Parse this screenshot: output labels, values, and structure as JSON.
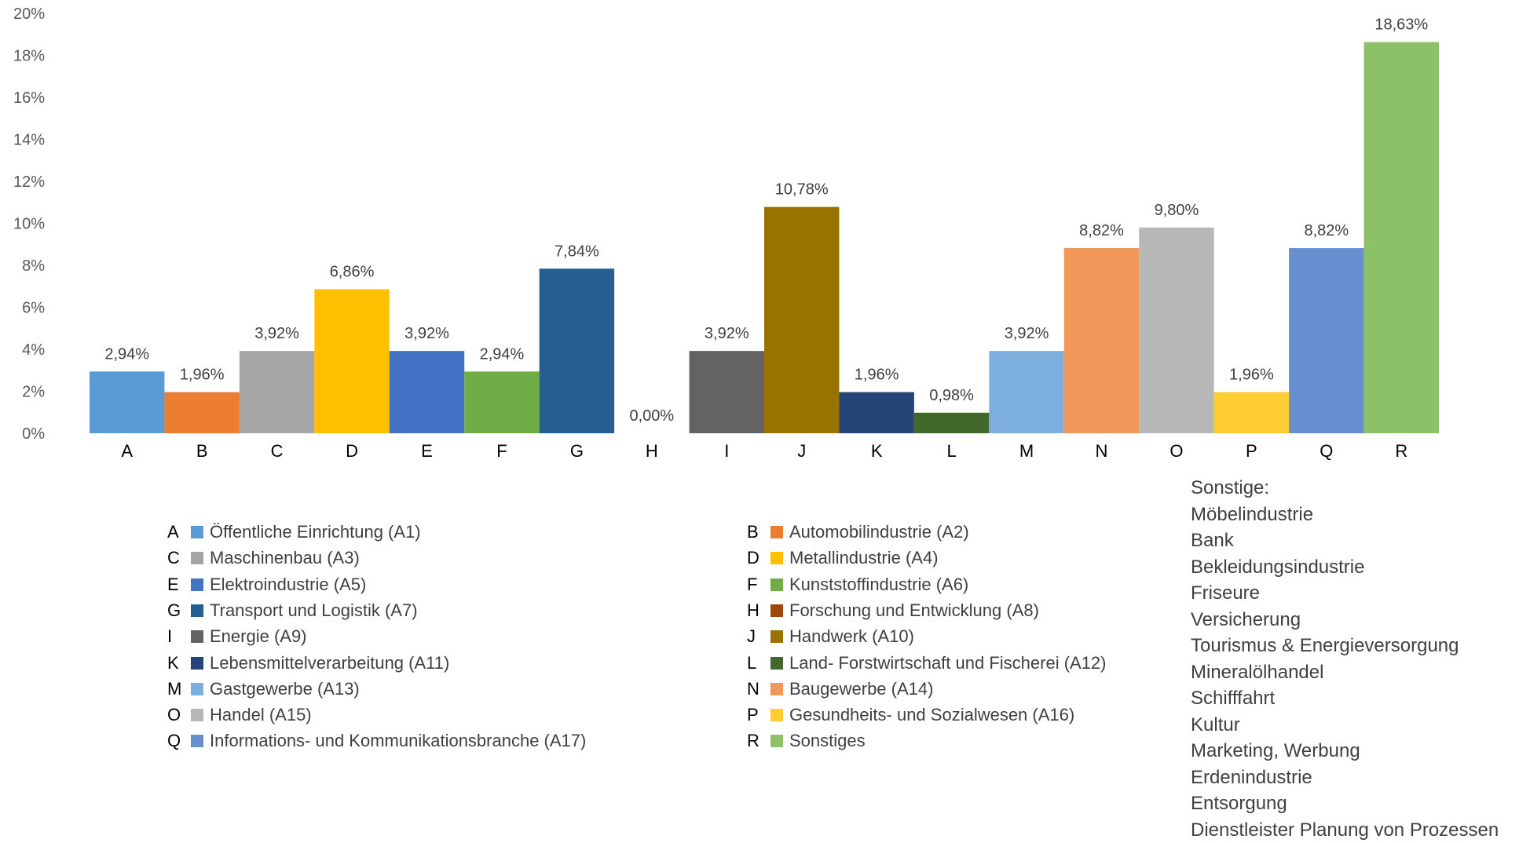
{
  "chart_data": {
    "type": "bar",
    "categories": [
      "A",
      "B",
      "C",
      "D",
      "E",
      "F",
      "G",
      "H",
      "I",
      "J",
      "K",
      "L",
      "M",
      "N",
      "O",
      "P",
      "Q",
      "R"
    ],
    "values": [
      2.94,
      1.96,
      3.92,
      6.86,
      3.92,
      2.94,
      7.84,
      0.0,
      3.92,
      10.78,
      1.96,
      0.98,
      3.92,
      8.82,
      9.8,
      1.96,
      8.82,
      18.63
    ],
    "data_labels": [
      "2,94%",
      "1,96%",
      "3,92%",
      "6,86%",
      "3,92%",
      "2,94%",
      "7,84%",
      "0,00%",
      "3,92%",
      "10,78%",
      "1,96%",
      "0,98%",
      "3,92%",
      "8,82%",
      "9,80%",
      "1,96%",
      "8,82%",
      "18,63%"
    ],
    "colors": [
      "#5B9BD5",
      "#ED7D31",
      "#A5A5A5",
      "#FFC000",
      "#4472C4",
      "#70AD47",
      "#255E91",
      "#9E480E",
      "#636363",
      "#997300",
      "#264478",
      "#43682B",
      "#7CAFDD",
      "#F1975A",
      "#B7B7B7",
      "#FFCD33",
      "#698ED0",
      "#8CC168"
    ],
    "ylim": [
      0,
      20
    ],
    "yticks": [
      "0%",
      "2%",
      "4%",
      "6%",
      "8%",
      "10%",
      "12%",
      "14%",
      "16%",
      "18%",
      "20%"
    ],
    "grid": false,
    "legend": [
      {
        "letter": "A",
        "label": "Öffentliche Einrichtung (A1)"
      },
      {
        "letter": "B",
        "label": "Automobilindustrie (A2)"
      },
      {
        "letter": "C",
        "label": "Maschinenbau (A3)"
      },
      {
        "letter": "D",
        "label": "Metallindustrie (A4)"
      },
      {
        "letter": "E",
        "label": "Elektroindustrie (A5)"
      },
      {
        "letter": "F",
        "label": "Kunststoffindustrie (A6)"
      },
      {
        "letter": "G",
        "label": "Transport und Logistik (A7)"
      },
      {
        "letter": "H",
        "label": "Forschung und Entwicklung (A8)"
      },
      {
        "letter": "I",
        "label": "Energie (A9)"
      },
      {
        "letter": "J",
        "label": "Handwerk (A10)"
      },
      {
        "letter": "K",
        "label": "Lebensmittelverarbeitung (A11)"
      },
      {
        "letter": "L",
        "label": "Land- Forstwirtschaft und Fischerei (A12)"
      },
      {
        "letter": "M",
        "label": "Gastgewerbe (A13)"
      },
      {
        "letter": "N",
        "label": "Baugewerbe (A14)"
      },
      {
        "letter": "O",
        "label": "Handel (A15)"
      },
      {
        "letter": "P",
        "label": "Gesundheits- und Sozialwesen (A16)"
      },
      {
        "letter": "Q",
        "label": "Informations- und Kommunikationsbranche (A17)"
      },
      {
        "letter": "R",
        "label": "Sonstiges"
      }
    ]
  },
  "sonstige": {
    "heading": "Sonstige:",
    "items": [
      "Möbelindustrie",
      "Bank",
      "Bekleidungsindustrie",
      "Friseure",
      "Versicherung",
      "Tourismus & Energieversorgung",
      "Mineralölhandel",
      "Schifffahrt",
      "Kultur",
      "Marketing, Werbung",
      "Erdenindustrie",
      "Entsorgung",
      "Dienstleister Planung von Prozessen"
    ]
  }
}
